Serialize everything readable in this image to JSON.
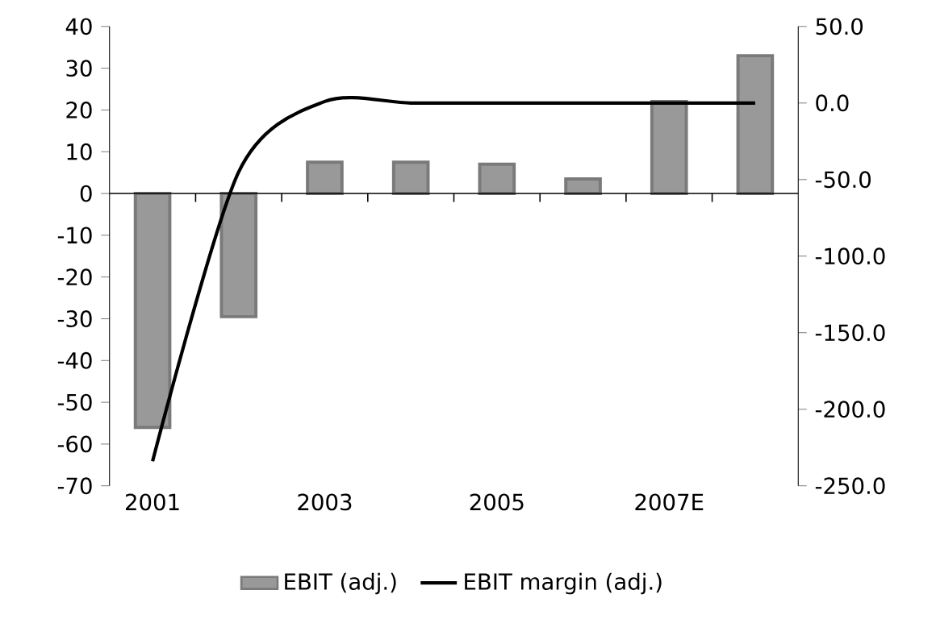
{
  "chart_data": {
    "type": "bar",
    "categories": [
      "2001",
      null,
      "2003",
      null,
      "2005",
      null,
      "2007E",
      null
    ],
    "series": [
      {
        "name": "EBIT (adj.)",
        "color": "#999999",
        "values": [
          -56,
          -29.5,
          7.5,
          7.5,
          7,
          3.5,
          22,
          33
        ]
      },
      {
        "name": "EBIT margin (adj.)",
        "type": "line",
        "axis": "y2",
        "color": "#000000",
        "values": [
          -234,
          -45,
          1,
          0,
          0,
          0,
          0,
          0
        ]
      }
    ],
    "ylim": [
      -70,
      40
    ],
    "yticks": [
      -70,
      -60,
      -50,
      -40,
      -30,
      -20,
      -10,
      0,
      10,
      20,
      30,
      40
    ],
    "y2lim": [
      -250,
      50
    ],
    "y2ticks": [
      {
        "value": -250,
        "label": "-250.0"
      },
      {
        "value": -200,
        "label": "-200.0"
      },
      {
        "value": -150,
        "label": "-150.0"
      },
      {
        "value": -100,
        "label": "-100.0"
      },
      {
        "value": -50,
        "label": "-50.0"
      },
      {
        "value": 0,
        "label": "0.0"
      },
      {
        "value": 50,
        "label": "50.0"
      }
    ],
    "legend": "bottom"
  }
}
